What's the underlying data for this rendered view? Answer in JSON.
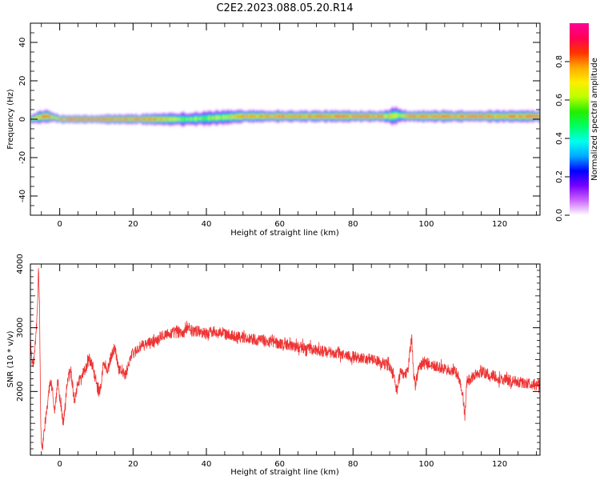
{
  "figure_title": "C2E2.2023.088.05.20.R14",
  "chart_data": [
    {
      "type": "heatmap",
      "name": "spectrogram",
      "xlabel": "Height of straight line (km)",
      "ylabel": "Frequency (Hz)",
      "xlim": [
        -8,
        131
      ],
      "ylim": [
        -50,
        50
      ],
      "x_ticks": [
        0,
        20,
        40,
        60,
        80,
        100,
        120
      ],
      "y_ticks": [
        -40,
        -20,
        0,
        20,
        40
      ],
      "colorbar": {
        "label": "Normalized spectral amplitude",
        "range": [
          0,
          1
        ],
        "ticks": [
          0.0,
          0.2,
          0.4,
          0.6,
          0.8
        ],
        "colors": [
          "#ffffff",
          "#cc66ff",
          "#7700ff",
          "#0000ff",
          "#00aaff",
          "#00ffee",
          "#00ff66",
          "#22ee00",
          "#bbff00",
          "#ffee00",
          "#ffaa00",
          "#ff3300",
          "#ff0055",
          "#ff0099"
        ]
      },
      "ridge": [
        {
          "x": -8,
          "f": 0,
          "amp": 0.6
        },
        {
          "x": -6,
          "f": 1,
          "amp": 0.75
        },
        {
          "x": -4,
          "f": 1.5,
          "amp": 0.9
        },
        {
          "x": -2,
          "f": 1,
          "amp": 0.7
        },
        {
          "x": 0,
          "f": 0,
          "amp": 0.85
        },
        {
          "x": 5,
          "f": 0,
          "amp": 0.9
        },
        {
          "x": 10,
          "f": 0,
          "amp": 0.9
        },
        {
          "x": 15,
          "f": 0,
          "amp": 0.85
        },
        {
          "x": 20,
          "f": 0,
          "amp": 0.85
        },
        {
          "x": 25,
          "f": 0,
          "amp": 0.8
        },
        {
          "x": 30,
          "f": 0,
          "amp": 0.7
        },
        {
          "x": 35,
          "f": 0,
          "amp": 0.6
        },
        {
          "x": 40,
          "f": 0.5,
          "amp": 0.6
        },
        {
          "x": 45,
          "f": 1,
          "amp": 0.65
        },
        {
          "x": 50,
          "f": 1.5,
          "amp": 0.75
        },
        {
          "x": 55,
          "f": 1.5,
          "amp": 0.8
        },
        {
          "x": 60,
          "f": 1.5,
          "amp": 0.85
        },
        {
          "x": 65,
          "f": 1.5,
          "amp": 0.85
        },
        {
          "x": 70,
          "f": 1.5,
          "amp": 0.85
        },
        {
          "x": 75,
          "f": 1.5,
          "amp": 0.85
        },
        {
          "x": 80,
          "f": 1.5,
          "amp": 0.85
        },
        {
          "x": 85,
          "f": 1.5,
          "amp": 0.85
        },
        {
          "x": 90,
          "f": 1.5,
          "amp": 0.7
        },
        {
          "x": 92,
          "f": 2,
          "amp": 0.6
        },
        {
          "x": 95,
          "f": 1.5,
          "amp": 0.8
        },
        {
          "x": 100,
          "f": 1.5,
          "amp": 0.85
        },
        {
          "x": 105,
          "f": 1.5,
          "amp": 0.85
        },
        {
          "x": 110,
          "f": 1.5,
          "amp": 0.85
        },
        {
          "x": 115,
          "f": 1.5,
          "amp": 0.85
        },
        {
          "x": 120,
          "f": 1.5,
          "amp": 0.85
        },
        {
          "x": 125,
          "f": 1.5,
          "amp": 0.85
        },
        {
          "x": 131,
          "f": 1.5,
          "amp": 0.85
        }
      ],
      "ridge_halfwidth": [
        {
          "x": -8,
          "w": 2.5
        },
        {
          "x": -5,
          "w": 3.5
        },
        {
          "x": -2,
          "w": 2.5
        },
        {
          "x": 0,
          "w": 2
        },
        {
          "x": 10,
          "w": 2
        },
        {
          "x": 15,
          "w": 2.5
        },
        {
          "x": 20,
          "w": 2.5
        },
        {
          "x": 30,
          "w": 3.5
        },
        {
          "x": 40,
          "w": 4
        },
        {
          "x": 50,
          "w": 3.5
        },
        {
          "x": 60,
          "w": 3
        },
        {
          "x": 70,
          "w": 3
        },
        {
          "x": 80,
          "w": 3
        },
        {
          "x": 88,
          "w": 3
        },
        {
          "x": 91,
          "w": 5
        },
        {
          "x": 94,
          "w": 3
        },
        {
          "x": 100,
          "w": 3
        },
        {
          "x": 110,
          "w": 3
        },
        {
          "x": 120,
          "w": 3
        },
        {
          "x": 131,
          "w": 3
        }
      ]
    },
    {
      "type": "line",
      "name": "snr",
      "xlabel": "Height of straight line (km)",
      "ylabel": "SNR (10 * v/v)",
      "xlim": [
        -8,
        131
      ],
      "ylim": [
        1000,
        4000
      ],
      "x_ticks": [
        0,
        20,
        40,
        60,
        80,
        100,
        120
      ],
      "y_ticks": [
        2000,
        3000,
        4000
      ],
      "color": "#ee3333",
      "x": [
        -8,
        -7.5,
        -7,
        -6.5,
        -6,
        -5.8,
        -5.5,
        -5.2,
        -5,
        -4.7,
        -4.4,
        -4,
        -3.5,
        -3,
        -2.5,
        -2,
        -1.5,
        -1,
        -0.5,
        0,
        0.5,
        1,
        1.5,
        2,
        2.5,
        3,
        3.5,
        4,
        5,
        6,
        7,
        8,
        9,
        10,
        11,
        12,
        13,
        14,
        15,
        16,
        17,
        18,
        19,
        20,
        22,
        24,
        26,
        28,
        30,
        32,
        34,
        35,
        36,
        38,
        40,
        42,
        45,
        50,
        55,
        60,
        65,
        70,
        75,
        80,
        85,
        88,
        90,
        91,
        92,
        93,
        94,
        95,
        95.5,
        96,
        96.5,
        97,
        98,
        100,
        102,
        105,
        108,
        109,
        110,
        110.5,
        111,
        113,
        115,
        118,
        120,
        125,
        131
      ],
      "y": [
        2800,
        2400,
        2500,
        2850,
        3400,
        4000,
        3300,
        1600,
        1200,
        1050,
        1300,
        1500,
        1750,
        2000,
        2150,
        2050,
        1700,
        1850,
        2200,
        1900,
        1700,
        1500,
        1800,
        2100,
        2250,
        2350,
        2100,
        1850,
        2150,
        2250,
        2350,
        2500,
        2400,
        2100,
        2000,
        2450,
        2300,
        2550,
        2700,
        2400,
        2300,
        2250,
        2500,
        2600,
        2700,
        2750,
        2800,
        2900,
        2900,
        2950,
        2900,
        3050,
        2950,
        2950,
        2900,
        2950,
        2900,
        2850,
        2800,
        2750,
        2700,
        2650,
        2600,
        2550,
        2500,
        2450,
        2400,
        2250,
        2000,
        2350,
        2250,
        2300,
        2650,
        2850,
        2300,
        2100,
        2400,
        2450,
        2400,
        2350,
        2300,
        2200,
        1900,
        1600,
        2150,
        2250,
        2300,
        2250,
        2200,
        2150,
        2100
      ],
      "noise": 90
    }
  ]
}
